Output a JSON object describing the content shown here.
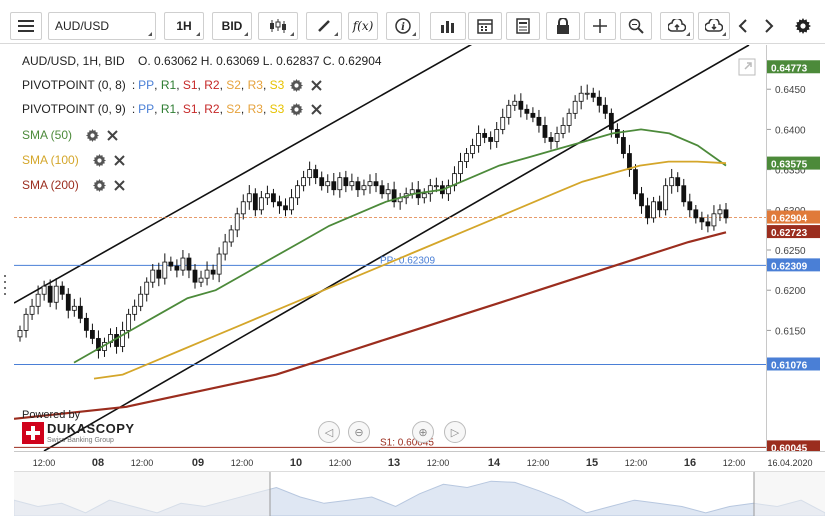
{
  "toolbar": {
    "symbol": "AUD/USD",
    "timeframe": "1H",
    "offer_side": "BID",
    "icons": [
      "menu-icon",
      "candle-icon",
      "draw-icon",
      "function-icon",
      "info-icon",
      "indicator-icon",
      "calendar-icon",
      "report-icon",
      "lock-icon",
      "crosshair-icon",
      "zoom-icon",
      "upload-icon",
      "download-icon",
      "prev-icon",
      "next-icon",
      "settings-icon"
    ]
  },
  "header": {
    "ohlc": "AUD/USD, 1H, BID    O. 0.63062 H. 0.63069 L. 0.62837 C. 0.62904"
  },
  "legend": [
    {
      "name": "PIVOTPOINT (0, 8)",
      "parts": [
        "PP",
        "R1",
        "S1",
        "R2",
        "S2",
        "R3",
        "S3"
      ],
      "colors": [
        "#4a7fd6",
        "#2e7d32",
        "#c62828",
        "#c62828",
        "#e6a23c",
        "#e6a23c",
        "#e6c200"
      ]
    },
    {
      "name": "PIVOTPOINT (0, 9)",
      "parts": [
        "PP",
        "R1",
        "S1",
        "R2",
        "S2",
        "R3",
        "S3"
      ],
      "colors": [
        "#4a7fd6",
        "#2e7d32",
        "#c62828",
        "#c62828",
        "#e6a23c",
        "#e6a23c",
        "#e6c200"
      ]
    },
    {
      "name": "SMA (50)",
      "color": "#4c8a3a"
    },
    {
      "name": "SMA (100)",
      "color": "#d4a62a"
    },
    {
      "name": "SMA (200)",
      "color": "#9b2d1e"
    }
  ],
  "branding": {
    "powered_by": "Powered by",
    "name": "DUKASCOPY",
    "tagline": "Swiss Banking Group"
  },
  "chart_data": {
    "type": "candlestick",
    "symbol": "AUD/USD",
    "ylim": [
      0.6,
      0.6505
    ],
    "y_ticks": [
      0.645,
      0.64,
      0.635,
      0.63,
      0.625,
      0.62,
      0.615
    ],
    "x_tick_labels": [
      "12:00",
      "08",
      "12:00",
      "09",
      "12:00",
      "10",
      "12:00",
      "13",
      "12:00",
      "14",
      "12:00",
      "15",
      "12:00",
      "16",
      "12:00",
      "16.04.2020"
    ],
    "price_badges": [
      {
        "value": "0.64773",
        "color": "#4c8a3a"
      },
      {
        "value": "0.63575",
        "color": "#4c8a3a"
      },
      {
        "value": "0.62904",
        "color": "#e07a3a"
      },
      {
        "value": "0.62723",
        "color": "#9b2d1e"
      },
      {
        "value": "0.62309",
        "color": "#4a7fd6"
      },
      {
        "value": "0.61076",
        "color": "#4a7fd6"
      },
      {
        "value": "0.60045",
        "color": "#9b2d1e"
      }
    ],
    "horizontal_lines": [
      {
        "label": "PP: 0.62309",
        "value": 0.62309,
        "color": "#4a7fd6"
      },
      {
        "label": "",
        "value": 0.61076,
        "color": "#4a7fd6"
      },
      {
        "label": "S1: 0.60045",
        "value": 0.60045,
        "color": "#9b2d1e"
      }
    ],
    "close_series": [
      0.615,
      0.617,
      0.618,
      0.6195,
      0.6205,
      0.6185,
      0.6205,
      0.6195,
      0.6175,
      0.618,
      0.6165,
      0.615,
      0.614,
      0.6125,
      0.6135,
      0.6145,
      0.613,
      0.615,
      0.617,
      0.618,
      0.6195,
      0.621,
      0.6225,
      0.6215,
      0.6235,
      0.623,
      0.6225,
      0.624,
      0.6225,
      0.621,
      0.6215,
      0.6225,
      0.622,
      0.6245,
      0.626,
      0.6275,
      0.6295,
      0.631,
      0.632,
      0.63,
      0.6315,
      0.632,
      0.631,
      0.6305,
      0.63,
      0.6315,
      0.633,
      0.634,
      0.635,
      0.634,
      0.633,
      0.6335,
      0.6325,
      0.634,
      0.633,
      0.6335,
      0.6325,
      0.633,
      0.6335,
      0.633,
      0.632,
      0.6325,
      0.631,
      0.6315,
      0.632,
      0.6325,
      0.6315,
      0.632,
      0.633,
      0.633,
      0.632,
      0.633,
      0.6345,
      0.636,
      0.637,
      0.638,
      0.6395,
      0.639,
      0.6385,
      0.64,
      0.6415,
      0.643,
      0.6435,
      0.6425,
      0.642,
      0.6415,
      0.6405,
      0.639,
      0.6385,
      0.6395,
      0.6405,
      0.642,
      0.6435,
      0.6445,
      0.6445,
      0.644,
      0.643,
      0.642,
      0.64,
      0.639,
      0.637,
      0.635,
      0.632,
      0.6305,
      0.629,
      0.631,
      0.63,
      0.633,
      0.634,
      0.633,
      0.631,
      0.63,
      0.629,
      0.6285,
      0.628,
      0.6295,
      0.63,
      0.629
    ],
    "sma50": [
      0.611,
      0.613,
      0.615,
      0.617,
      0.619,
      0.62,
      0.622,
      0.624,
      0.626,
      0.628,
      0.6295,
      0.631,
      0.632,
      0.6325,
      0.634,
      0.6355,
      0.6365,
      0.6375,
      0.6385,
      0.6395,
      0.64,
      0.6395,
      0.638,
      0.6355
    ],
    "sma100": [
      0.609,
      0.6095,
      0.611,
      0.6125,
      0.614,
      0.6155,
      0.617,
      0.6185,
      0.62,
      0.6215,
      0.623,
      0.6245,
      0.626,
      0.6275,
      0.629,
      0.6305,
      0.632,
      0.6335,
      0.6345,
      0.6355,
      0.636,
      0.636,
      0.6358
    ],
    "sma200": [
      0.604,
      0.6045,
      0.605,
      0.6055,
      0.6065,
      0.6075,
      0.6085,
      0.6095,
      0.611,
      0.6125,
      0.614,
      0.6155,
      0.617,
      0.6185,
      0.62,
      0.6215,
      0.623,
      0.6245,
      0.626,
      0.6272
    ]
  }
}
